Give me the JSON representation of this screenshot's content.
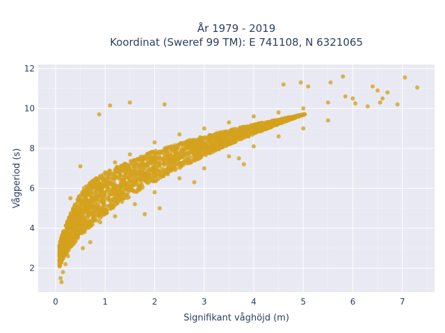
{
  "chart_data": {
    "type": "scatter",
    "title_line1": "År 1979 - 2019",
    "title_line2": "Koordinat (Sweref 99 TM): E 741108, N 6321065",
    "xlabel": "Signifikant våghöjd (m)",
    "ylabel": "Vågperiod (s)",
    "xlim": [
      -0.35,
      7.65
    ],
    "ylim": [
      0.8,
      12.2
    ],
    "x_ticks": [
      0,
      1,
      2,
      3,
      4,
      5,
      6,
      7
    ],
    "y_ticks": [
      2,
      4,
      6,
      8,
      10,
      12
    ],
    "grid": true,
    "legend": "none",
    "colors": {
      "marker": "#d4a21d",
      "plot_bg": "#e8e9f2",
      "grid": "#ffffff",
      "text": "#2a3f5f"
    },
    "series": [
      {
        "points": [
          [
            0.1,
            1.5
          ],
          [
            0.12,
            1.3
          ],
          [
            0.15,
            1.8
          ],
          [
            0.2,
            2.2
          ],
          [
            0.25,
            2.6
          ],
          [
            0.3,
            3.1
          ],
          [
            0.35,
            3.6
          ],
          [
            0.4,
            4.0
          ],
          [
            0.5,
            4.6
          ],
          [
            0.6,
            5.2
          ],
          [
            0.7,
            5.7
          ],
          [
            0.8,
            6.2
          ],
          [
            1.0,
            6.8
          ],
          [
            1.2,
            7.3
          ],
          [
            1.5,
            7.7
          ],
          [
            2.0,
            8.3
          ],
          [
            2.5,
            8.7
          ],
          [
            3.0,
            9.0
          ],
          [
            3.5,
            9.3
          ],
          [
            4.0,
            9.6
          ],
          [
            4.5,
            9.8
          ],
          [
            5.0,
            10.0
          ],
          [
            5.5,
            10.3
          ],
          [
            6.0,
            10.5
          ],
          [
            0.6,
            4.0
          ],
          [
            0.9,
            4.3
          ],
          [
            1.2,
            4.6
          ],
          [
            1.6,
            5.2
          ],
          [
            2.0,
            5.8
          ],
          [
            2.5,
            6.5
          ],
          [
            3.0,
            7.0
          ],
          [
            3.5,
            7.6
          ],
          [
            4.0,
            8.1
          ],
          [
            4.5,
            8.6
          ],
          [
            5.0,
            9.0
          ],
          [
            5.5,
            9.4
          ],
          [
            6.6,
            10.5
          ],
          [
            6.55,
            10.3
          ],
          [
            6.5,
            10.9
          ],
          [
            6.7,
            10.8
          ],
          [
            6.4,
            11.1
          ],
          [
            7.05,
            11.55
          ],
          [
            7.3,
            11.05
          ],
          [
            5.8,
            11.6
          ],
          [
            5.55,
            11.3
          ],
          [
            5.1,
            11.1
          ],
          [
            4.95,
            11.3
          ],
          [
            4.6,
            11.2
          ],
          [
            2.2,
            10.2
          ],
          [
            1.5,
            10.3
          ],
          [
            1.1,
            10.15
          ],
          [
            0.88,
            9.7
          ],
          [
            0.5,
            7.1
          ],
          [
            0.3,
            5.5
          ],
          [
            6.3,
            10.1
          ],
          [
            6.05,
            10.25
          ],
          [
            5.85,
            10.6
          ],
          [
            6.9,
            10.2
          ],
          [
            3.8,
            7.2
          ],
          [
            3.7,
            7.5
          ],
          [
            2.1,
            5.0
          ],
          [
            4.1,
            9.0
          ],
          [
            2.8,
            6.3
          ],
          [
            1.8,
            4.7
          ],
          [
            0.55,
            3.0
          ],
          [
            0.7,
            3.3
          ]
        ]
      }
    ]
  }
}
